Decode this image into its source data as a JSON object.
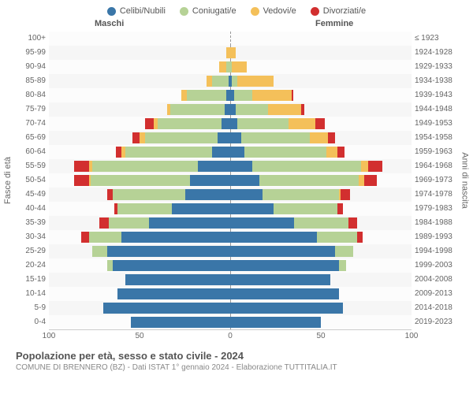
{
  "legend": [
    {
      "label": "Celibi/Nubili",
      "color": "#3a76a8"
    },
    {
      "label": "Coniugati/e",
      "color": "#b6d296"
    },
    {
      "label": "Vedovi/e",
      "color": "#f4c05a"
    },
    {
      "label": "Divorziati/e",
      "color": "#d22f2f"
    }
  ],
  "columns": {
    "male": "Maschi",
    "female": "Femmine"
  },
  "axis": {
    "left_title": "Fasce di età",
    "right_title": "Anni di nascita",
    "x_max": 100,
    "x_ticks": [
      100,
      50,
      0,
      50,
      100
    ]
  },
  "footer": {
    "title": "Popolazione per età, sesso e stato civile - 2024",
    "sub": "COMUNE DI BRENNERO (BZ) - Dati ISTAT 1° gennaio 2024 - Elaborazione TUTTITALIA.IT"
  },
  "colors": {
    "single": "#3a76a8",
    "married": "#b6d296",
    "widowed": "#f4c05a",
    "divorced": "#d22f2f"
  },
  "rows": [
    {
      "age": "100+",
      "year": "≤ 1923",
      "m": [
        0,
        0,
        0,
        0
      ],
      "f": [
        0,
        0,
        0,
        0
      ]
    },
    {
      "age": "95-99",
      "year": "1924-1928",
      "m": [
        0,
        0,
        2,
        0
      ],
      "f": [
        0,
        0,
        3,
        0
      ]
    },
    {
      "age": "90-94",
      "year": "1929-1933",
      "m": [
        0,
        2,
        4,
        0
      ],
      "f": [
        0,
        1,
        8,
        0
      ]
    },
    {
      "age": "85-89",
      "year": "1934-1938",
      "m": [
        1,
        9,
        3,
        0
      ],
      "f": [
        1,
        3,
        20,
        0
      ]
    },
    {
      "age": "80-84",
      "year": "1939-1943",
      "m": [
        2,
        22,
        3,
        0
      ],
      "f": [
        2,
        10,
        22,
        1
      ]
    },
    {
      "age": "75-79",
      "year": "1944-1948",
      "m": [
        3,
        30,
        2,
        0
      ],
      "f": [
        3,
        18,
        18,
        2
      ]
    },
    {
      "age": "70-74",
      "year": "1949-1953",
      "m": [
        5,
        35,
        2,
        5
      ],
      "f": [
        4,
        28,
        15,
        5
      ]
    },
    {
      "age": "65-69",
      "year": "1954-1958",
      "m": [
        7,
        40,
        3,
        4
      ],
      "f": [
        6,
        38,
        10,
        4
      ]
    },
    {
      "age": "60-64",
      "year": "1959-1963",
      "m": [
        10,
        48,
        2,
        3
      ],
      "f": [
        8,
        45,
        6,
        4
      ]
    },
    {
      "age": "55-59",
      "year": "1964-1968",
      "m": [
        18,
        58,
        2,
        8
      ],
      "f": [
        12,
        60,
        4,
        8
      ]
    },
    {
      "age": "50-54",
      "year": "1969-1973",
      "m": [
        22,
        55,
        1,
        8
      ],
      "f": [
        16,
        55,
        3,
        7
      ]
    },
    {
      "age": "45-49",
      "year": "1974-1978",
      "m": [
        25,
        40,
        0,
        3
      ],
      "f": [
        18,
        42,
        1,
        5
      ]
    },
    {
      "age": "40-44",
      "year": "1979-1983",
      "m": [
        32,
        30,
        0,
        2
      ],
      "f": [
        24,
        35,
        0,
        3
      ]
    },
    {
      "age": "35-39",
      "year": "1984-1988",
      "m": [
        45,
        22,
        0,
        5
      ],
      "f": [
        35,
        30,
        0,
        5
      ]
    },
    {
      "age": "30-34",
      "year": "1989-1993",
      "m": [
        60,
        18,
        0,
        4
      ],
      "f": [
        48,
        22,
        0,
        3
      ]
    },
    {
      "age": "25-29",
      "year": "1994-1998",
      "m": [
        68,
        8,
        0,
        0
      ],
      "f": [
        58,
        10,
        0,
        0
      ]
    },
    {
      "age": "20-24",
      "year": "1999-2003",
      "m": [
        65,
        3,
        0,
        0
      ],
      "f": [
        60,
        4,
        0,
        0
      ]
    },
    {
      "age": "15-19",
      "year": "2004-2008",
      "m": [
        58,
        0,
        0,
        0
      ],
      "f": [
        55,
        0,
        0,
        0
      ]
    },
    {
      "age": "10-14",
      "year": "2009-2013",
      "m": [
        62,
        0,
        0,
        0
      ],
      "f": [
        60,
        0,
        0,
        0
      ]
    },
    {
      "age": "5-9",
      "year": "2014-2018",
      "m": [
        70,
        0,
        0,
        0
      ],
      "f": [
        62,
        0,
        0,
        0
      ]
    },
    {
      "age": "0-4",
      "year": "2019-2023",
      "m": [
        55,
        0,
        0,
        0
      ],
      "f": [
        50,
        0,
        0,
        0
      ]
    }
  ]
}
